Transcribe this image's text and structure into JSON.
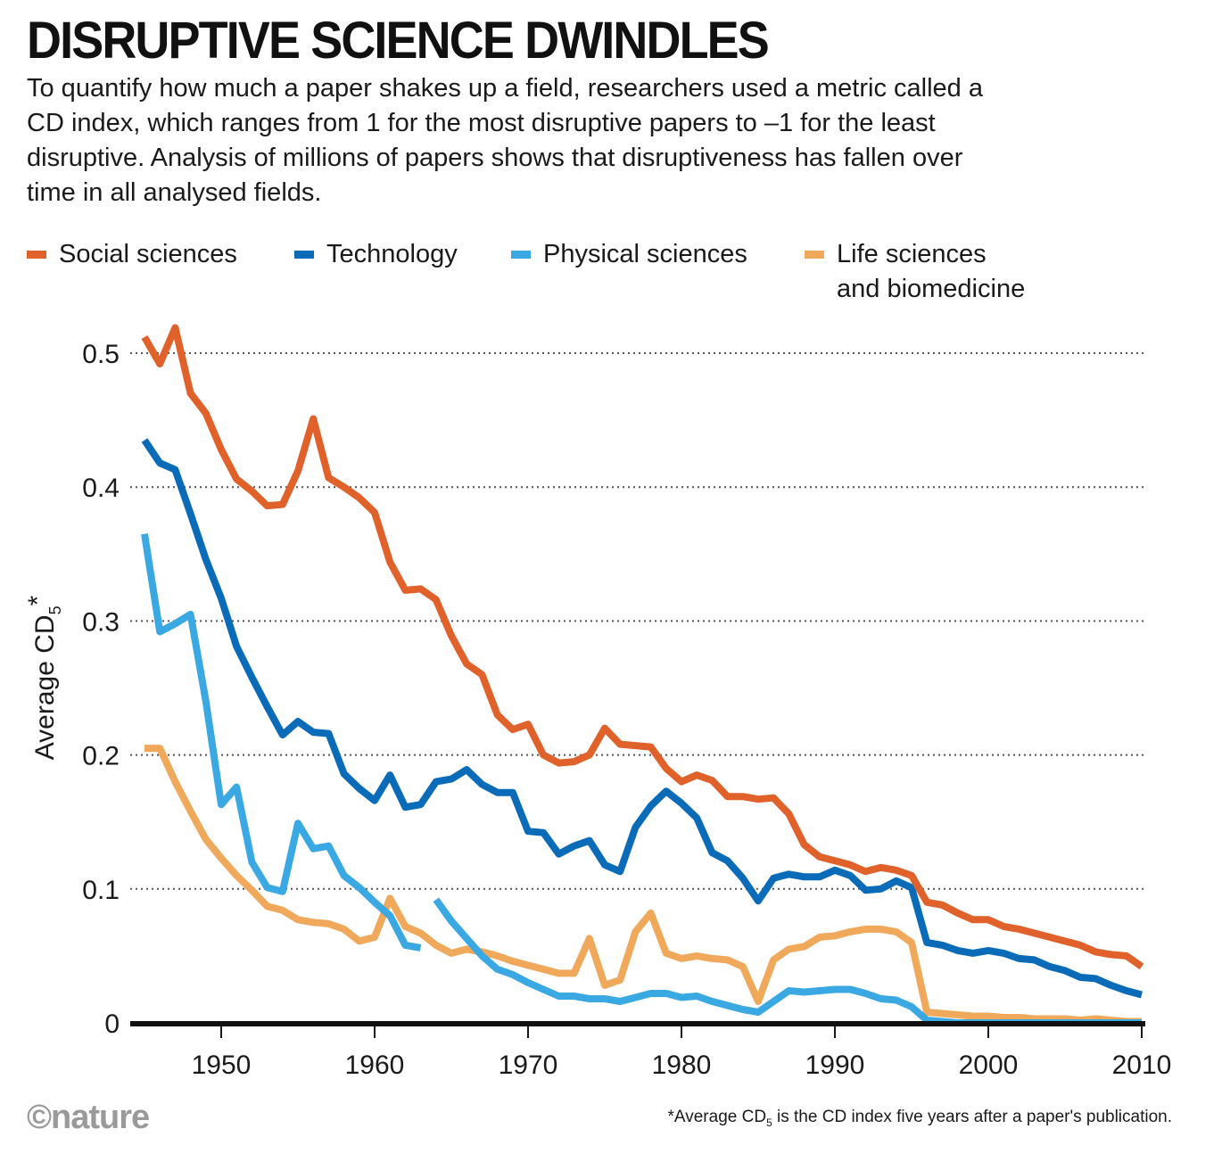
{
  "title": "DISRUPTIVE SCIENCE DWINDLES",
  "subtitle": "To quantify how much a paper shakes up a field, researchers used a metric called a CD index, which ranges from 1 for the most disruptive papers to –1 for the least disruptive. Analysis of millions of papers shows that disruptiveness has fallen over time in all analysed fields.",
  "legend": [
    {
      "label": "Social sciences",
      "color": "#e0612a"
    },
    {
      "label": "Technology",
      "color": "#0a6bb8"
    },
    {
      "label": "Physical sciences",
      "color": "#3aa8e2"
    },
    {
      "label": "Life sciences\nand biomedicine",
      "color": "#f0a85a"
    }
  ],
  "brand": "©nature",
  "footnote": {
    "prefix": "*Average CD",
    "sub": "5",
    "suffix": " is the CD index five years after a paper's publication."
  },
  "chart_data": {
    "type": "line",
    "title": "DISRUPTIVE SCIENCE DWINDLES",
    "ylabel": "Average CD",
    "ylabel_sub": "5",
    "ylabel_sup": "*",
    "xlabel": "",
    "xlim": [
      1945,
      2010
    ],
    "ylim": [
      0,
      0.5
    ],
    "xticks": [
      1950,
      1960,
      1970,
      1980,
      1990,
      2000,
      2010
    ],
    "yticks": [
      0,
      0.1,
      0.2,
      0.3,
      0.4,
      0.5
    ],
    "ytick_labels": [
      "0",
      "0.1",
      "0.2",
      "0.3",
      "0.4",
      "0.5"
    ],
    "grid": "horizontal dotted",
    "legend_position": "top",
    "series": [
      {
        "name": "Social sciences",
        "color": "#e0612a",
        "x": [
          1945,
          1946,
          1947,
          1948,
          1949,
          1950,
          1951,
          1952,
          1953,
          1954,
          1955,
          1956,
          1957,
          1958,
          1959,
          1960,
          1961,
          1962,
          1963,
          1964,
          1965,
          1966,
          1967,
          1968,
          1969,
          1970,
          1971,
          1972,
          1973,
          1974,
          1975,
          1976,
          1977,
          1978,
          1979,
          1980,
          1981,
          1982,
          1983,
          1984,
          1985,
          1986,
          1987,
          1988,
          1989,
          1990,
          1991,
          1992,
          1993,
          1994,
          1995,
          1996,
          1997,
          1998,
          1999,
          2000,
          2001,
          2002,
          2003,
          2004,
          2005,
          2006,
          2007,
          2008,
          2009,
          2010
        ],
        "y": [
          0.512,
          0.492,
          0.519,
          0.47,
          0.455,
          0.428,
          0.406,
          0.397,
          0.386,
          0.387,
          0.412,
          0.451,
          0.407,
          0.4,
          0.392,
          0.381,
          0.344,
          0.323,
          0.324,
          0.316,
          0.289,
          0.268,
          0.26,
          0.23,
          0.219,
          0.223,
          0.2,
          0.194,
          0.195,
          0.2,
          0.22,
          0.208,
          0.207,
          0.206,
          0.19,
          0.18,
          0.185,
          0.181,
          0.169,
          0.169,
          0.167,
          0.168,
          0.156,
          0.133,
          0.124,
          0.121,
          0.118,
          0.113,
          0.116,
          0.114,
          0.11,
          0.09,
          0.088,
          0.082,
          0.077,
          0.077,
          0.072,
          0.07,
          0.067,
          0.064,
          0.061,
          0.058,
          0.053,
          0.051,
          0.05,
          0.042
        ]
      },
      {
        "name": "Technology",
        "color": "#0a6bb8",
        "x": [
          1945,
          1946,
          1947,
          1948,
          1949,
          1950,
          1951,
          1952,
          1953,
          1954,
          1955,
          1956,
          1957,
          1958,
          1959,
          1960,
          1961,
          1962,
          1963,
          1964,
          1965,
          1966,
          1967,
          1968,
          1969,
          1970,
          1971,
          1972,
          1973,
          1974,
          1975,
          1976,
          1977,
          1978,
          1979,
          1980,
          1981,
          1982,
          1983,
          1984,
          1985,
          1986,
          1987,
          1988,
          1989,
          1990,
          1991,
          1992,
          1993,
          1994,
          1995,
          1996,
          1997,
          1998,
          1999,
          2000,
          2001,
          2002,
          2003,
          2004,
          2005,
          2006,
          2007,
          2008,
          2009,
          2010
        ],
        "y": [
          0.435,
          0.418,
          0.413,
          0.38,
          0.346,
          0.317,
          0.281,
          0.258,
          0.236,
          0.215,
          0.225,
          0.217,
          0.216,
          0.186,
          0.175,
          0.166,
          0.185,
          0.161,
          0.163,
          0.18,
          0.182,
          0.189,
          0.178,
          0.172,
          0.172,
          0.143,
          0.142,
          0.126,
          0.132,
          0.136,
          0.118,
          0.113,
          0.146,
          0.162,
          0.173,
          0.164,
          0.153,
          0.127,
          0.121,
          0.108,
          0.091,
          0.108,
          0.111,
          0.109,
          0.109,
          0.114,
          0.11,
          0.099,
          0.1,
          0.106,
          0.101,
          0.06,
          0.058,
          0.054,
          0.052,
          0.054,
          0.052,
          0.048,
          0.047,
          0.042,
          0.039,
          0.034,
          0.033,
          0.028,
          0.024,
          0.021
        ]
      },
      {
        "name": "Physical sciences",
        "color": "#3aa8e2",
        "x": [
          1945,
          1946,
          1947,
          1948,
          1949,
          1950,
          1951,
          1952,
          1953,
          1954,
          1955,
          1956,
          1957,
          1958,
          1959,
          1960,
          1961,
          1962,
          1963,
          null,
          1964,
          1965,
          1966,
          1967,
          1968,
          1969,
          1970,
          1971,
          1972,
          1973,
          1974,
          1975,
          1976,
          1977,
          1978,
          1979,
          1980,
          1981,
          1982,
          1983,
          1984,
          1985,
          1986,
          1987,
          1988,
          1989,
          1990,
          1991,
          1992,
          1993,
          1994,
          1995,
          1996,
          1997,
          1998,
          1999,
          2000,
          2001,
          2002,
          2003,
          2004,
          2005,
          2006,
          2007,
          2008,
          2009,
          2010
        ],
        "y": [
          0.365,
          0.292,
          0.298,
          0.305,
          0.24,
          0.163,
          0.176,
          0.12,
          0.101,
          0.098,
          0.149,
          0.13,
          0.132,
          0.11,
          0.101,
          0.09,
          0.08,
          0.058,
          0.056,
          null,
          0.092,
          0.076,
          0.063,
          0.05,
          0.04,
          0.036,
          0.03,
          0.025,
          0.02,
          0.02,
          0.018,
          0.018,
          0.016,
          0.019,
          0.022,
          0.022,
          0.019,
          0.02,
          0.016,
          0.013,
          0.01,
          0.008,
          0.016,
          0.024,
          0.023,
          0.024,
          0.025,
          0.025,
          0.022,
          0.018,
          0.017,
          0.012,
          0.002,
          0.001,
          0.0,
          0.0,
          0.0,
          0.0,
          0.0,
          0.0,
          0.0,
          0.0,
          0.0,
          0.0,
          0.0,
          0.0,
          0.0
        ]
      },
      {
        "name": "Life sciences and biomedicine",
        "color": "#f0a85a",
        "x": [
          1945,
          1946,
          1947,
          1948,
          1949,
          1950,
          1951,
          1952,
          1953,
          1954,
          1955,
          1956,
          1957,
          1958,
          1959,
          1960,
          1961,
          1962,
          1963,
          1964,
          1965,
          1966,
          1967,
          1968,
          1969,
          1970,
          1971,
          1972,
          1973,
          1974,
          1975,
          1976,
          1977,
          1978,
          1979,
          1980,
          1981,
          1982,
          1983,
          1984,
          1985,
          1986,
          1987,
          1988,
          1989,
          1990,
          1991,
          1992,
          1993,
          1994,
          1995,
          1996,
          1997,
          1998,
          1999,
          2000,
          2001,
          2002,
          2003,
          2004,
          2005,
          2006,
          2007,
          2008,
          2009,
          2010
        ],
        "y": [
          0.205,
          0.205,
          0.18,
          0.158,
          0.137,
          0.123,
          0.11,
          0.099,
          0.087,
          0.084,
          0.077,
          0.075,
          0.074,
          0.07,
          0.061,
          0.064,
          0.093,
          0.072,
          0.067,
          0.058,
          0.052,
          0.055,
          0.053,
          0.05,
          0.046,
          0.043,
          0.04,
          0.037,
          0.037,
          0.063,
          0.028,
          0.032,
          0.068,
          0.082,
          0.052,
          0.048,
          0.05,
          0.048,
          0.047,
          0.042,
          0.016,
          0.047,
          0.055,
          0.057,
          0.064,
          0.065,
          0.068,
          0.07,
          0.07,
          0.068,
          0.06,
          0.008,
          0.007,
          0.006,
          0.005,
          0.005,
          0.004,
          0.004,
          0.003,
          0.003,
          0.003,
          0.002,
          0.003,
          0.002,
          0.001,
          0.001
        ]
      }
    ]
  }
}
